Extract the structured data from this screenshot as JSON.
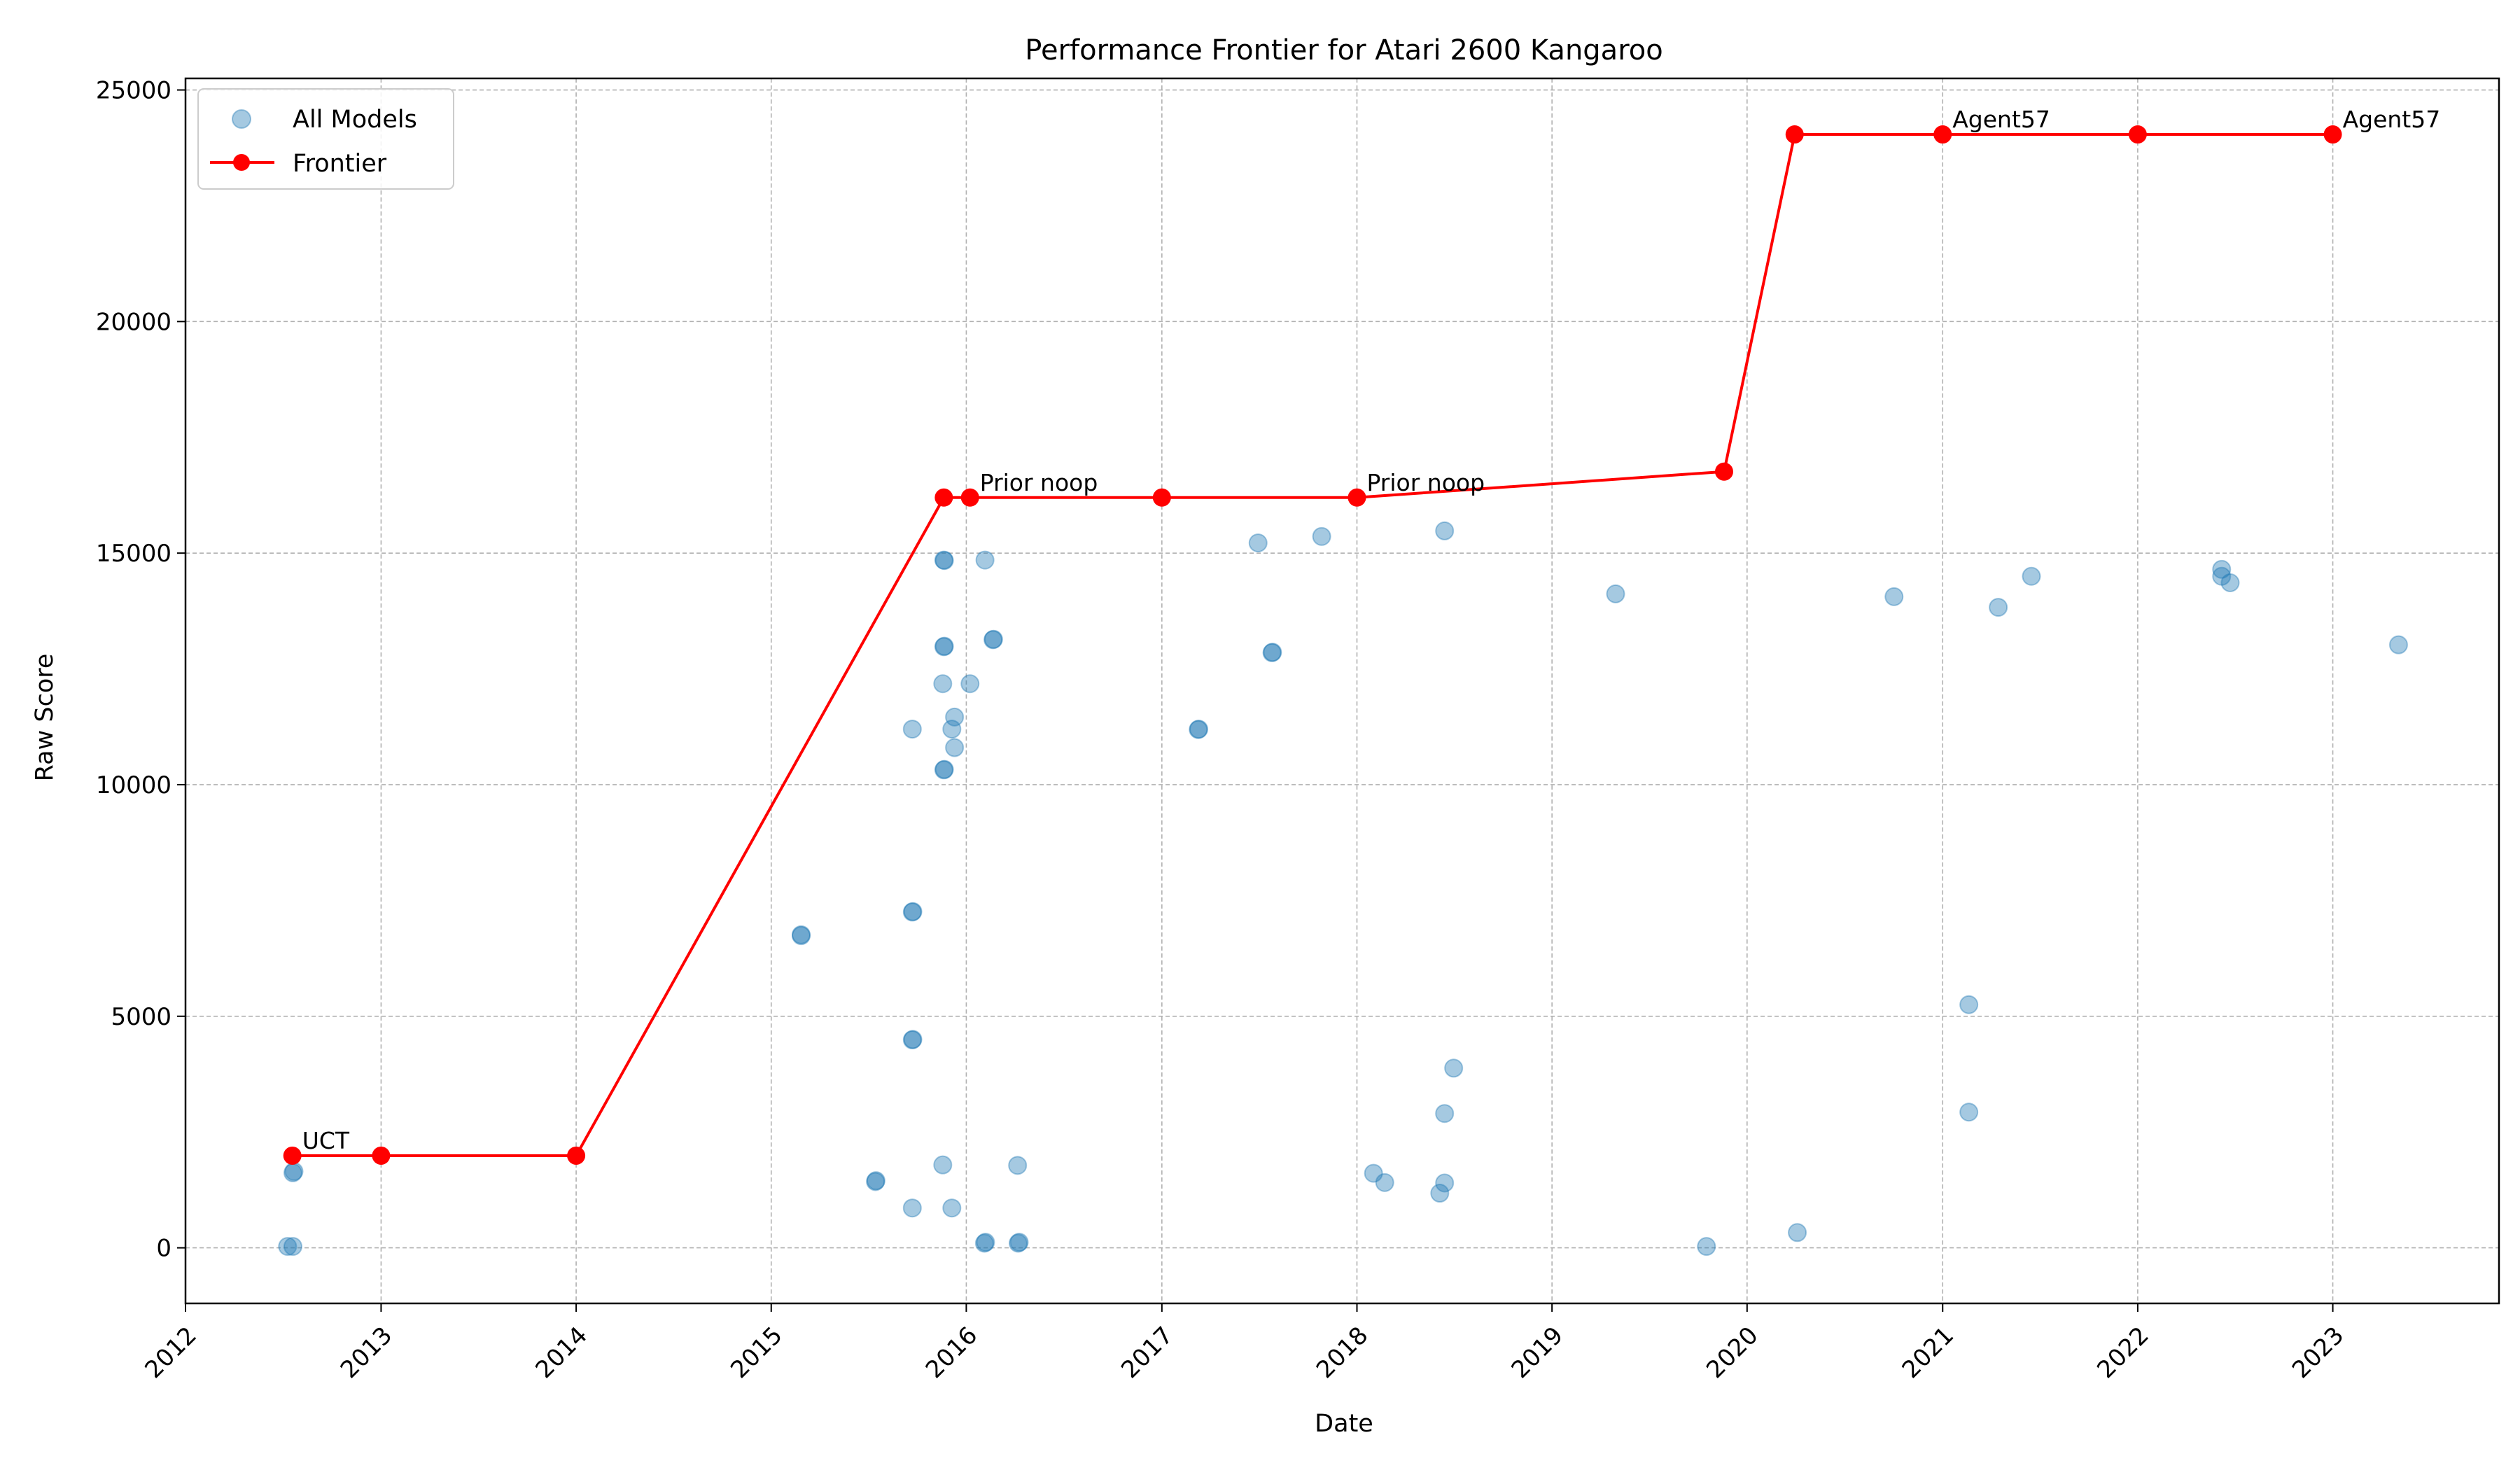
{
  "chart_data": {
    "type": "scatter",
    "title": "Performance Frontier for Atari 2600 Kangaroo",
    "xlabel": "Date",
    "ylabel": "Raw Score",
    "xlim": [
      "2012-01-01",
      "2023-11-08"
    ],
    "ylim": [
      -1200,
      25250
    ],
    "x_ticks": [
      "2012",
      "2013",
      "2014",
      "2015",
      "2016",
      "2017",
      "2018",
      "2019",
      "2020",
      "2021",
      "2022",
      "2023"
    ],
    "y_ticks": [
      "0",
      "5000",
      "10000",
      "15000",
      "20000",
      "25000"
    ],
    "grid": true,
    "legend": {
      "placement": "top-left",
      "entries": [
        "All Models",
        "Frontier"
      ]
    },
    "colors": {
      "scatter": "#1f77b4",
      "frontier": "#ff0000"
    },
    "series": [
      {
        "name": "All Models",
        "kind": "scatter",
        "points": [
          {
            "x": "2012-07-10",
            "y": 30
          },
          {
            "x": "2012-07-20",
            "y": 30
          },
          {
            "x": "2012-07-20",
            "y": 1620
          },
          {
            "x": "2012-07-22",
            "y": 1650
          },
          {
            "x": "2015-02-26",
            "y": 6740
          },
          {
            "x": "2015-02-26",
            "y": 6760
          },
          {
            "x": "2015-07-15",
            "y": 1430
          },
          {
            "x": "2015-07-16",
            "y": 1450
          },
          {
            "x": "2015-09-22",
            "y": 11200
          },
          {
            "x": "2015-09-22",
            "y": 7250
          },
          {
            "x": "2015-09-23",
            "y": 7260
          },
          {
            "x": "2015-09-22",
            "y": 4490
          },
          {
            "x": "2015-09-23",
            "y": 4500
          },
          {
            "x": "2015-09-22",
            "y": 860
          },
          {
            "x": "2015-11-20",
            "y": 14850
          },
          {
            "x": "2015-11-21",
            "y": 14840
          },
          {
            "x": "2015-11-20",
            "y": 12980
          },
          {
            "x": "2015-11-21",
            "y": 12990
          },
          {
            "x": "2015-11-18",
            "y": 12180
          },
          {
            "x": "2015-11-20",
            "y": 10320
          },
          {
            "x": "2015-11-21",
            "y": 10330
          },
          {
            "x": "2015-11-18",
            "y": 1790
          },
          {
            "x": "2015-12-05",
            "y": 11200
          },
          {
            "x": "2015-12-10",
            "y": 11460
          },
          {
            "x": "2015-12-10",
            "y": 10800
          },
          {
            "x": "2015-12-05",
            "y": 860
          },
          {
            "x": "2016-01-08",
            "y": 12180
          },
          {
            "x": "2016-02-05",
            "y": 14850
          },
          {
            "x": "2016-02-20",
            "y": 13130
          },
          {
            "x": "2016-02-21",
            "y": 13140
          },
          {
            "x": "2016-02-04",
            "y": 100
          },
          {
            "x": "2016-02-06",
            "y": 120
          },
          {
            "x": "2016-04-06",
            "y": 1780
          },
          {
            "x": "2016-04-07",
            "y": 100
          },
          {
            "x": "2016-04-09",
            "y": 120
          },
          {
            "x": "2017-03-10",
            "y": 11190
          },
          {
            "x": "2017-03-11",
            "y": 11200
          },
          {
            "x": "2017-06-30",
            "y": 15220
          },
          {
            "x": "2017-07-26",
            "y": 12850
          },
          {
            "x": "2017-07-27",
            "y": 12860
          },
          {
            "x": "2017-10-27",
            "y": 15360
          },
          {
            "x": "2018-02-01",
            "y": 1610
          },
          {
            "x": "2018-02-22",
            "y": 1410
          },
          {
            "x": "2018-06-05",
            "y": 1180
          },
          {
            "x": "2018-06-14",
            "y": 15480
          },
          {
            "x": "2018-06-14",
            "y": 2900
          },
          {
            "x": "2018-06-14",
            "y": 1400
          },
          {
            "x": "2018-07-01",
            "y": 3880
          },
          {
            "x": "2019-04-30",
            "y": 14120
          },
          {
            "x": "2019-10-17",
            "y": 30
          },
          {
            "x": "2020-04-04",
            "y": 330
          },
          {
            "x": "2020-10-02",
            "y": 14060
          },
          {
            "x": "2021-02-19",
            "y": 5250
          },
          {
            "x": "2021-02-19",
            "y": 2930
          },
          {
            "x": "2021-04-15",
            "y": 13830
          },
          {
            "x": "2021-06-16",
            "y": 14500
          },
          {
            "x": "2022-06-07",
            "y": 14650
          },
          {
            "x": "2022-06-07",
            "y": 14500
          },
          {
            "x": "2022-06-23",
            "y": 14360
          },
          {
            "x": "2023-05-04",
            "y": 13020
          }
        ]
      },
      {
        "name": "Frontier",
        "kind": "line",
        "points": [
          {
            "x": "2012-07-19",
            "y": 1990,
            "label": "UCT"
          },
          {
            "x": "2013-01-01",
            "y": 1990
          },
          {
            "x": "2014-01-01",
            "y": 1990
          },
          {
            "x": "2015-11-20",
            "y": 16200
          },
          {
            "x": "2016-01-08",
            "y": 16200,
            "label": "Prior noop"
          },
          {
            "x": "2017-01-01",
            "y": 16200
          },
          {
            "x": "2018-01-01",
            "y": 16200,
            "label": "Prior noop"
          },
          {
            "x": "2019-11-19",
            "y": 16760
          },
          {
            "x": "2020-03-30",
            "y": 24040
          },
          {
            "x": "2021-01-01",
            "y": 24040,
            "label": "Agent57"
          },
          {
            "x": "2022-01-01",
            "y": 24040
          },
          {
            "x": "2023-01-01",
            "y": 24040,
            "label": "Agent57"
          }
        ]
      }
    ]
  }
}
